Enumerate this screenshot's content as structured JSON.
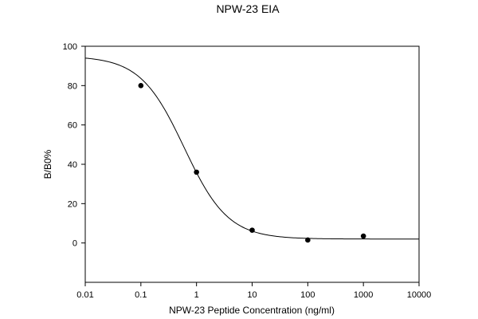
{
  "chart_data": {
    "type": "scatter",
    "title": "NPW-23 EIA",
    "xlabel": "NPW-23 Peptide Concentration (ng/ml)",
    "ylabel": "B/B0%",
    "xscale": "log",
    "xlim": [
      0.01,
      10000
    ],
    "ylim": [
      -20,
      100
    ],
    "x_ticks": [
      0.01,
      0.1,
      1,
      10,
      100,
      1000,
      10000
    ],
    "x_tick_labels": [
      "0.01",
      "0.1",
      "1",
      "10",
      "100",
      "1000",
      "10000"
    ],
    "y_ticks": [
      0,
      20,
      40,
      60,
      80,
      100
    ],
    "y_tick_labels": [
      "0",
      "20",
      "40",
      "60",
      "80",
      "100"
    ],
    "grid": false,
    "legend": "none",
    "points": {
      "x": [
        0.1,
        1,
        10,
        100,
        1000
      ],
      "y": [
        80,
        36,
        6.5,
        1.5,
        3.5
      ]
    },
    "fit_curve": {
      "model": "four-parameter logistic",
      "top": 95,
      "bottom": 2,
      "ec50": 0.6,
      "hill": 1.1
    },
    "colors": {
      "axis": "#000000",
      "points": "#000000",
      "curve": "#000000"
    }
  }
}
